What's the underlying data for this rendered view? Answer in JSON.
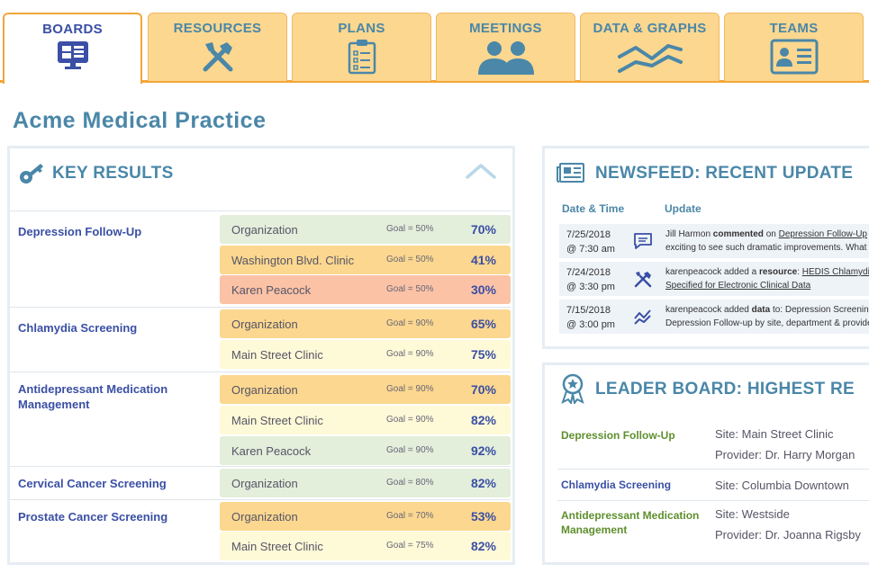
{
  "tabs": [
    {
      "label": "BOARDS",
      "icon": "boards-icon",
      "active": true
    },
    {
      "label": "RESOURCES",
      "icon": "tools-icon",
      "active": false
    },
    {
      "label": "PLANS",
      "icon": "clipboard-icon",
      "active": false
    },
    {
      "label": "MEETINGS",
      "icon": "people-icon",
      "active": false
    },
    {
      "label": "DATA & GRAPHS",
      "icon": "line-graph-icon",
      "active": false
    },
    {
      "label": "TEAMS",
      "icon": "id-card-icon",
      "active": false
    }
  ],
  "page_title": "Acme Medical Practice",
  "key_results": {
    "title": "KEY RESULTS",
    "metrics": [
      {
        "name": "Depression Follow-Up",
        "rows": [
          {
            "who": "Organization",
            "goal": "Goal = 50%",
            "value": "70%",
            "status": "green"
          },
          {
            "who": "Washington Blvd.  Clinic",
            "goal": "Goal = 50%",
            "value": "41%",
            "status": "orange"
          },
          {
            "who": "Karen Peacock",
            "goal": "Goal = 50%",
            "value": "30%",
            "status": "red"
          }
        ]
      },
      {
        "name": "Chlamydia Screening",
        "rows": [
          {
            "who": "Organization",
            "goal": "Goal = 90%",
            "value": "65%",
            "status": "orange"
          },
          {
            "who": "Main Street Clinic",
            "goal": "Goal = 90%",
            "value": "75%",
            "status": "yellow"
          }
        ]
      },
      {
        "name": "Antidepressant Medication Management",
        "rows": [
          {
            "who": "Organization",
            "goal": "Goal = 90%",
            "value": "70%",
            "status": "orange"
          },
          {
            "who": "Main Street Clinic",
            "goal": "Goal = 90%",
            "value": "82%",
            "status": "yellow"
          },
          {
            "who": "Karen Peacock",
            "goal": "Goal = 90%",
            "value": "92%",
            "status": "green"
          }
        ]
      },
      {
        "name": "Cervical Cancer Screening",
        "rows": [
          {
            "who": "Organization",
            "goal": "Goal = 80%",
            "value": "82%",
            "status": "green"
          }
        ]
      },
      {
        "name": "Prostate Cancer Screening",
        "rows": [
          {
            "who": "Organization",
            "goal": "Goal = 70%",
            "value": "53%",
            "status": "orange"
          },
          {
            "who": "Main Street Clinic",
            "goal": "Goal = 75%",
            "value": "82%",
            "status": "yellow"
          }
        ]
      }
    ]
  },
  "newsfeed": {
    "title": "NEWSFEED: RECENT UPDATE",
    "col_date": "Date & Time",
    "col_update": "Update",
    "items": [
      {
        "date": "7/25/2018",
        "time": "@ 7:30 am",
        "icon": "comment-icon",
        "line1_a": "Jill Harmon ",
        "line1_b": "commented",
        "line1_c": " on ",
        "line1_link": "Depression Follow-Up",
        "line2": "exciting to see such dramatic improvements. What"
      },
      {
        "date": "7/24/2018",
        "time": "@ 3:30 pm",
        "icon": "tools-icon",
        "line1_a": "karenpeacock added a ",
        "line1_b": "resource",
        "line1_c": ": ",
        "line1_link": "HEDIS Chlamydia",
        "line2": "Specified for Electronic Clinical Data"
      },
      {
        "date": "7/15/2018",
        "time": "@ 3:00 pm",
        "icon": "line-graph-icon",
        "line1_a": "karenpeacock added ",
        "line1_b": "data",
        "line1_c": " to: Depression Screening",
        "line1_link": "",
        "line2": "Depression Follow-up by site, department & provider"
      }
    ]
  },
  "leaderboard": {
    "title": "LEADER BOARD: HIGHEST RE",
    "entries": [
      {
        "metric": "Depression Follow-Up",
        "site": "Site: Main Street  Clinic",
        "provider": "Provider: Dr. Harry Morgan",
        "color": "#5e8f2e"
      },
      {
        "metric": "Chlamydia Screening",
        "site": "Site: Columbia Downtown",
        "provider": "",
        "color": "#3a4fa5"
      },
      {
        "metric": "Antidepressant Medication Management",
        "site": "Site: Westside",
        "provider": "Provider: Dr. Joanna Rigsby",
        "color": "#5e8f2e"
      }
    ]
  }
}
